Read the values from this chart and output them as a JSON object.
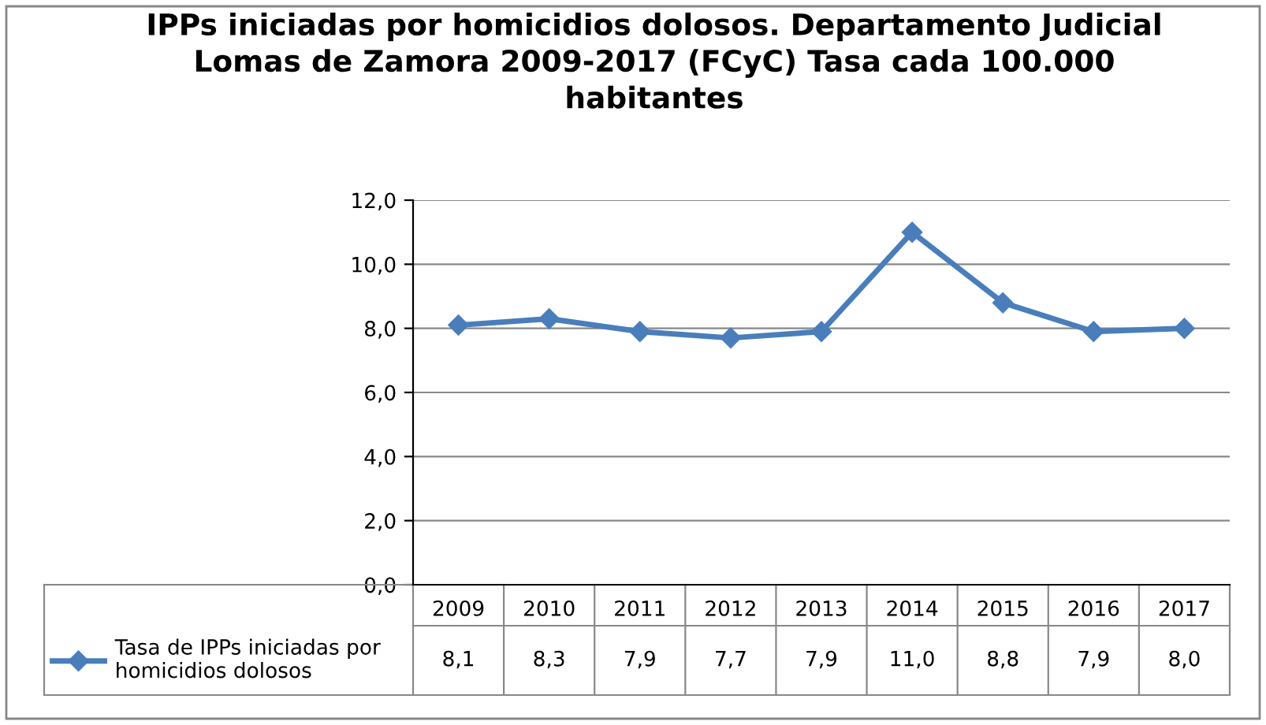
{
  "chart_data": {
    "type": "line",
    "title": "IPPs iniciadas por homicidios dolosos. Departamento Judicial\nLomas de Zamora 2009-2017 (FCyC) Tasa cada 100.000\nhabitantes",
    "categories": [
      "2009",
      "2010",
      "2011",
      "2012",
      "2013",
      "2014",
      "2015",
      "2016",
      "2017"
    ],
    "series": [
      {
        "name": "Tasa de IPPs iniciadas por homicidios dolosos",
        "color": "#4a7ebb",
        "values": [
          8.1,
          8.3,
          7.9,
          7.7,
          7.9,
          11.0,
          8.8,
          7.9,
          8.0
        ],
        "value_labels": [
          "8,1",
          "8,3",
          "7,9",
          "7,7",
          "7,9",
          "11,0",
          "8,8",
          "7,9",
          "8,0"
        ]
      }
    ],
    "ylim": [
      0,
      12
    ],
    "yticks": [
      {
        "value": 0,
        "label": "0,0"
      },
      {
        "value": 2,
        "label": "2,0"
      },
      {
        "value": 4,
        "label": "4,0"
      },
      {
        "value": 6,
        "label": "6,0"
      },
      {
        "value": 8,
        "label": "8,0"
      },
      {
        "value": 10,
        "label": "10,0"
      },
      {
        "value": 12,
        "label": "12,0"
      }
    ],
    "grid": "y",
    "legend": "bottom left",
    "marker": "diamond",
    "line_style": "solid"
  }
}
